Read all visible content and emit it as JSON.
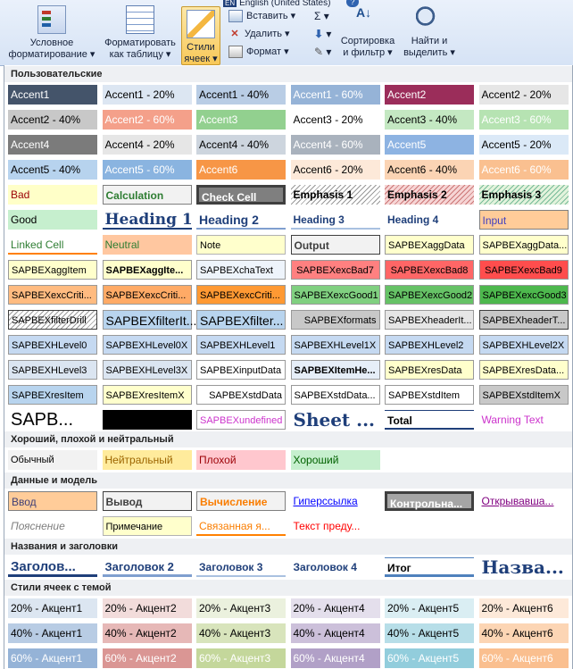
{
  "ribbon": {
    "language": "English (United States)",
    "help": "?",
    "conditional_format": {
      "line1": "Условное",
      "line2": "форматирование ▾"
    },
    "format_as_table": {
      "line1": "Форматировать",
      "line2": "как таблицу ▾"
    },
    "cell_styles": {
      "line1": "Стили",
      "line2": "ячеек ▾"
    },
    "insert": "Вставить ▾",
    "delete": "Удалить ▾",
    "format": "Формат ▾",
    "sum": "Σ ▾",
    "fill": "▾",
    "clear": "▾",
    "sort_filter": {
      "line1": "Сортировка",
      "line2": "и фильтр ▾"
    },
    "find_select": {
      "line1": "Найти и",
      "line2": "выделить ▾"
    }
  },
  "sections": [
    {
      "id": "custom",
      "label": "Пользовательские"
    },
    {
      "id": "gbn",
      "label": "Хороший, плохой и нейтральный"
    },
    {
      "id": "data",
      "label": "Данные и модель"
    },
    {
      "id": "titles",
      "label": "Названия и заголовки"
    },
    {
      "id": "themed",
      "label": "Стили ячеек с темой"
    }
  ],
  "rows": [
    {
      "sec": "custom",
      "cells": [
        {
          "t": "Accent1",
          "bg": "#44546a",
          "c": "#ffffff"
        },
        {
          "t": "Accent1 - 20%",
          "bg": "#dce6f2",
          "c": "#000000"
        },
        {
          "t": "Accent1 - 40%",
          "bg": "#b9cde5",
          "c": "#000000"
        },
        {
          "t": "Accent1 - 60%",
          "bg": "#95b3d7",
          "c": "#ffffff"
        },
        {
          "t": "Accent2",
          "bg": "#9b2d5a",
          "c": "#ffffff"
        },
        {
          "t": "Accent2 - 20%",
          "bg": "#e6e6e6",
          "c": "#000000"
        }
      ]
    },
    {
      "sec": "custom",
      "cells": [
        {
          "t": "Accent2 - 40%",
          "bg": "#c8c8c8",
          "c": "#000000"
        },
        {
          "t": "Accent2 - 60%",
          "bg": "#f4a08a",
          "c": "#ffffff"
        },
        {
          "t": "Accent3",
          "bg": "#92d08f",
          "c": "#ffffff"
        },
        {
          "t": "Accent3 - 20%",
          "bg": "#ffffff",
          "c": "#000000"
        },
        {
          "t": "Accent3 - 40%",
          "bg": "#c4e8c2",
          "c": "#000000"
        },
        {
          "t": "Accent3 - 60%",
          "bg": "#b6e3b2",
          "c": "#ffffff"
        }
      ]
    },
    {
      "sec": "custom",
      "cells": [
        {
          "t": "Accent4",
          "bg": "#7b7b7b",
          "c": "#ffffff"
        },
        {
          "t": "Accent4 - 20%",
          "bg": "#e6e6e6",
          "c": "#000000"
        },
        {
          "t": "Accent4 - 40%",
          "bg": "#cdd5de",
          "c": "#000000"
        },
        {
          "t": "Accent4 - 60%",
          "bg": "#a9b2bd",
          "c": "#ffffff"
        },
        {
          "t": "Accent5",
          "bg": "#8db3e2",
          "c": "#ffffff"
        },
        {
          "t": "Accent5 - 20%",
          "bg": "#dbe9f7",
          "c": "#000000"
        }
      ]
    },
    {
      "sec": "custom",
      "cells": [
        {
          "t": "Accent5 - 40%",
          "bg": "#b7d3ee",
          "c": "#000000"
        },
        {
          "t": "Accent5 - 60%",
          "bg": "#8ab4e0",
          "c": "#ffffff"
        },
        {
          "t": "Accent6",
          "bg": "#f79646",
          "c": "#ffffff"
        },
        {
          "t": "Accent6 - 20%",
          "bg": "#fde9d9",
          "c": "#000000"
        },
        {
          "t": "Accent6 - 40%",
          "bg": "#fbd4b4",
          "c": "#000000"
        },
        {
          "t": "Accent6 - 60%",
          "bg": "#fac090",
          "c": "#ffffff"
        }
      ]
    },
    {
      "sec": "custom",
      "cells": [
        {
          "t": "Bad",
          "bg": "#ffffc8",
          "c": "#9c0006"
        },
        {
          "t": "Calculation",
          "bg": "#f2f2f2",
          "c": "#2e7d32",
          "b": "#7f7f7f",
          "w": "bold"
        },
        {
          "t": "Check Cell",
          "bg": "#7f7f7f",
          "c": "#ffffff",
          "b": "#3f3f3f",
          "w": "bold",
          "bw": "3px"
        },
        {
          "t": "Emphasis 1",
          "bg": "hatch",
          "c": "#000000",
          "w": "bold"
        },
        {
          "t": "Emphasis 2",
          "bg": "hatch-red",
          "c": "#000000",
          "w": "bold"
        },
        {
          "t": "Emphasis 3",
          "bg": "hatch-green",
          "c": "#000000",
          "w": "bold"
        }
      ]
    },
    {
      "sec": "custom",
      "cells": [
        {
          "t": "Good",
          "bg": "#c6efce",
          "c": "#000000"
        },
        {
          "t": "Heading 1",
          "bg": "#ffffff",
          "c": "#1f3f7a",
          "w": "bold",
          "fs": "17px",
          "bb": "#1f3f7a",
          "serif": true
        },
        {
          "t": "Heading 2",
          "bg": "#ffffff",
          "c": "#1f3f7a",
          "w": "bold",
          "fs": "14px",
          "bb": "#7f9fcf"
        },
        {
          "t": "Heading 3",
          "bg": "#ffffff",
          "c": "#1f3f7a",
          "w": "bold",
          "fs": "12px",
          "bb": "#a9c1e0"
        },
        {
          "t": "Heading 4",
          "bg": "#ffffff",
          "c": "#1f3f7a",
          "w": "bold",
          "fs": "12px"
        },
        {
          "t": "Input",
          "bg": "#ffcc99",
          "c": "#3f3fbf",
          "b": "#7f7f7f"
        }
      ]
    },
    {
      "sec": "custom",
      "cells": [
        {
          "t": "Linked Cell",
          "bg": "#ffffff",
          "c": "#2e7d32",
          "bb": "#ff8001"
        },
        {
          "t": "Neutral",
          "bg": "#ffc7a0",
          "c": "#2e7d32"
        },
        {
          "t": "Note",
          "bg": "#ffffcc",
          "c": "#000000",
          "b": "#b2b2b2",
          "fs": "11px"
        },
        {
          "t": "Output",
          "bg": "#f2f2f2",
          "c": "#3f3f3f",
          "b": "#3f3f3f",
          "w": "bold"
        },
        {
          "t": "SAPBEXaggData",
          "bg": "#ffffcc",
          "c": "#000000",
          "b": "#999999",
          "fs": "11px"
        },
        {
          "t": "SAPBEXaggData...",
          "bg": "#ffffcc",
          "c": "#000000",
          "b": "#999999",
          "fs": "11px"
        }
      ]
    },
    {
      "sec": "custom",
      "cells": [
        {
          "t": "SAPBEXaggItem",
          "bg": "#ffffcc",
          "c": "#000000",
          "b": "#999999",
          "fs": "11px"
        },
        {
          "t": "SAPBEXaggIte...",
          "bg": "#ffffcc",
          "c": "#000000",
          "b": "#999999",
          "fs": "11px",
          "w": "bold"
        },
        {
          "t": "SAPBEXchaText",
          "bg": "#eef4fb",
          "c": "#000000",
          "b": "#999999",
          "fs": "11px"
        },
        {
          "t": "SAPBEXexcBad7",
          "bg": "#ff8080",
          "c": "#000000",
          "b": "#999999",
          "fs": "11px",
          "al": "center"
        },
        {
          "t": "SAPBEXexcBad8",
          "bg": "#ff6666",
          "c": "#000000",
          "b": "#999999",
          "fs": "11px",
          "al": "center"
        },
        {
          "t": "SAPBEXexcBad9",
          "bg": "#ff4d4d",
          "c": "#000000",
          "b": "#999999",
          "fs": "11px",
          "al": "center"
        }
      ]
    },
    {
      "sec": "custom",
      "cells": [
        {
          "t": "SAPBEXexcCriti...",
          "bg": "#ffbb80",
          "c": "#000000",
          "b": "#999999",
          "fs": "11px"
        },
        {
          "t": "SAPBEXexcCriti...",
          "bg": "#ffaa66",
          "c": "#000000",
          "b": "#999999",
          "fs": "11px"
        },
        {
          "t": "SAPBEXexcCriti...",
          "bg": "#ff9933",
          "c": "#000000",
          "b": "#999999",
          "fs": "11px"
        },
        {
          "t": "SAPBEXexcGood1",
          "bg": "#80d080",
          "c": "#000000",
          "b": "#999999",
          "fs": "11px"
        },
        {
          "t": "SAPBEXexcGood2",
          "bg": "#66c266",
          "c": "#000000",
          "b": "#999999",
          "fs": "11px"
        },
        {
          "t": "SAPBEXexcGood3",
          "bg": "#4db84d",
          "c": "#000000",
          "b": "#999999",
          "fs": "11px"
        }
      ]
    },
    {
      "sec": "custom",
      "cells": [
        {
          "t": "SAPBEXfilterDrill",
          "bg": "hatch",
          "c": "#000000",
          "b": "#3f3f3f",
          "fs": "11px"
        },
        {
          "t": "SAPBEXfilterIt...",
          "bg": "#b8d4ee",
          "c": "#000000",
          "b": "#999999",
          "fs": "14px"
        },
        {
          "t": "SAPBEXfilter...",
          "bg": "#b8d4ee",
          "c": "#000000",
          "b": "#999999",
          "fs": "14px"
        },
        {
          "t": "SAPBEXformats",
          "bg": "#c8c8c8",
          "c": "#000000",
          "b": "#999999",
          "fs": "11px",
          "al": "right"
        },
        {
          "t": "SAPBEXheaderIt...",
          "bg": "#e6e6e6",
          "c": "#000000",
          "b": "#999999",
          "fs": "11px"
        },
        {
          "t": "SAPBEXheaderT...",
          "bg": "#c8c8c8",
          "c": "#000000",
          "b": "#3f3f3f",
          "fs": "11px",
          "al": "right"
        }
      ]
    },
    {
      "sec": "custom",
      "cells": [
        {
          "t": "SAPBEXHLevel0",
          "bg": "#c5d9f1",
          "c": "#000000",
          "b": "#999999",
          "fs": "11px"
        },
        {
          "t": "SAPBEXHLevel0X",
          "bg": "#c5d9f1",
          "c": "#000000",
          "b": "#999999",
          "fs": "11px"
        },
        {
          "t": "SAPBEXHLevel1",
          "bg": "#c5d9f1",
          "c": "#000000",
          "b": "#999999",
          "fs": "11px"
        },
        {
          "t": "SAPBEXHLevel1X",
          "bg": "#c5d9f1",
          "c": "#000000",
          "b": "#999999",
          "fs": "11px"
        },
        {
          "t": "SAPBEXHLevel2",
          "bg": "#c5d9f1",
          "c": "#000000",
          "b": "#999999",
          "fs": "11px"
        },
        {
          "t": "SAPBEXHLevel2X",
          "bg": "#c5d9f1",
          "c": "#000000",
          "b": "#999999",
          "fs": "11px"
        }
      ]
    },
    {
      "sec": "custom",
      "cells": [
        {
          "t": "SAPBEXHLevel3",
          "bg": "#dbe5f1",
          "c": "#000000",
          "b": "#999999",
          "fs": "11px"
        },
        {
          "t": "SAPBEXHLevel3X",
          "bg": "#dbe5f1",
          "c": "#000000",
          "b": "#999999",
          "fs": "11px"
        },
        {
          "t": "SAPBEXinputData",
          "bg": "#ffffff",
          "c": "#000000",
          "b": "#999999",
          "fs": "11px"
        },
        {
          "t": "SAPBEXItemHe...",
          "bg": "#e6eef8",
          "c": "#000000",
          "b": "#999999",
          "fs": "11px",
          "w": "bold"
        },
        {
          "t": "SAPBEXresData",
          "bg": "#ffffcc",
          "c": "#000000",
          "b": "#999999",
          "fs": "11px"
        },
        {
          "t": "SAPBEXresData...",
          "bg": "#ffffcc",
          "c": "#000000",
          "b": "#999999",
          "fs": "11px"
        }
      ]
    },
    {
      "sec": "custom",
      "cells": [
        {
          "t": "SAPBEXresItem",
          "bg": "#b8d4ee",
          "c": "#000000",
          "b": "#999999",
          "fs": "11px"
        },
        {
          "t": "SAPBEXresItemX",
          "bg": "#ffffcc",
          "c": "#000000",
          "b": "#999999",
          "fs": "11px"
        },
        {
          "t": "SAPBEXstdData",
          "bg": "#ffffff",
          "c": "#000000",
          "b": "#999999",
          "fs": "11px",
          "al": "right"
        },
        {
          "t": "SAPBEXstdData...",
          "bg": "#ffffff",
          "c": "#000000",
          "b": "#999999",
          "fs": "11px"
        },
        {
          "t": "SAPBEXstdItem",
          "bg": "#ffffff",
          "c": "#000000",
          "b": "#999999",
          "fs": "11px"
        },
        {
          "t": "SAPBEXstdItemX",
          "bg": "#c8c8c8",
          "c": "#000000",
          "b": "#999999",
          "fs": "11px"
        }
      ]
    },
    {
      "sec": "custom",
      "cells": [
        {
          "t": "SAPB...",
          "bg": "#ffffff",
          "c": "#000000",
          "fs": "20px"
        },
        {
          "t": "",
          "bg": "#000000",
          "c": "#000000"
        },
        {
          "t": "SAPBEXundefined",
          "bg": "#ffffff",
          "c": "#cc33cc",
          "b": "#999999",
          "fs": "11px"
        },
        {
          "t": "Sheet ...",
          "bg": "#ffffff",
          "c": "#1f3f7a",
          "w": "bold",
          "fs": "20px",
          "serif": true
        },
        {
          "t": "Total",
          "bg": "#ffffff",
          "c": "#000000",
          "w": "bold",
          "bt": "#1f3f7a",
          "bb": "#1f3f7a"
        },
        {
          "t": "Warning Text",
          "bg": "#ffffff",
          "c": "#cc33cc"
        }
      ]
    },
    {
      "sec": "gbn",
      "cells": [
        {
          "t": "Обычный",
          "bg": "#f2f2f2",
          "c": "#000000",
          "fs": "11px"
        },
        {
          "t": "Нейтральный",
          "bg": "#ffeb9c",
          "c": "#9c6500"
        },
        {
          "t": "Плохой",
          "bg": "#ffc7ce",
          "c": "#9c0006"
        },
        {
          "t": "Хороший",
          "bg": "#c6efce",
          "c": "#006100"
        }
      ]
    },
    {
      "sec": "data",
      "cells": [
        {
          "t": "Ввод",
          "bg": "#ffcc99",
          "c": "#3f3f76",
          "b": "#7f7f7f"
        },
        {
          "t": "Вывод",
          "bg": "#f2f2f2",
          "c": "#3f3f3f",
          "b": "#3f3f3f",
          "w": "bold"
        },
        {
          "t": "Вычисление",
          "bg": "#f2f2f2",
          "c": "#fa7d00",
          "b": "#7f7f7f",
          "w": "bold"
        },
        {
          "t": "Гиперссылка",
          "bg": "#ffffff",
          "c": "#0000ff",
          "u": true
        },
        {
          "t": "Контрольна...",
          "bg": "#a5a5a5",
          "c": "#ffffff",
          "b": "#3f3f3f",
          "w": "bold",
          "bw": "3px"
        },
        {
          "t": "Открывавша...",
          "bg": "#ffffff",
          "c": "#800080",
          "u": true
        }
      ]
    },
    {
      "sec": "data",
      "cells": [
        {
          "t": "Пояснение",
          "bg": "#ffffff",
          "c": "#7f7f7f",
          "i": true
        },
        {
          "t": "Примечание",
          "bg": "#ffffcc",
          "c": "#000000",
          "b": "#b2b2b2",
          "fs": "11px"
        },
        {
          "t": "Связанная я...",
          "bg": "#ffffff",
          "c": "#fa7d00",
          "bb": "#ff8001"
        },
        {
          "t": "Текст преду...",
          "bg": "#ffffff",
          "c": "#ff0000"
        }
      ]
    },
    {
      "sec": "titles",
      "cells": [
        {
          "t": "Заголов...",
          "bg": "#ffffff",
          "c": "#1f3f7a",
          "w": "bold",
          "fs": "15px",
          "bb": "#1f3f7a",
          "bbw": "3px"
        },
        {
          "t": "Заголовок 2",
          "bg": "#ffffff",
          "c": "#1f3f7a",
          "w": "bold",
          "fs": "13px",
          "bb": "#7f9fcf",
          "bbw": "3px"
        },
        {
          "t": "Заголовок 3",
          "bg": "#ffffff",
          "c": "#1f3f7a",
          "w": "bold",
          "fs": "12px",
          "bb": "#a9c1e0",
          "bbw": "2px"
        },
        {
          "t": "Заголовок 4",
          "bg": "#ffffff",
          "c": "#1f3f7a",
          "w": "bold",
          "fs": "12px"
        },
        {
          "t": "Итог",
          "bg": "#ffffff",
          "c": "#000000",
          "w": "bold",
          "bt": "#4f81bd",
          "bb": "#4f81bd",
          "bbw": "3px"
        },
        {
          "t": "Назва...",
          "bg": "#ffffff",
          "c": "#1f3f7a",
          "w": "bold",
          "fs": "20px",
          "serif": true
        }
      ]
    },
    {
      "sec": "themed",
      "cells": [
        {
          "t": "20% - Акцент1",
          "bg": "#dce6f1",
          "c": "#000000"
        },
        {
          "t": "20% - Акцент2",
          "bg": "#f2dcdb",
          "c": "#000000"
        },
        {
          "t": "20% - Акцент3",
          "bg": "#ebf1de",
          "c": "#000000"
        },
        {
          "t": "20% - Акцент4",
          "bg": "#e4dfec",
          "c": "#000000"
        },
        {
          "t": "20% - Акцент5",
          "bg": "#daeef3",
          "c": "#000000"
        },
        {
          "t": "20% - Акцент6",
          "bg": "#fde9d9",
          "c": "#000000"
        }
      ]
    },
    {
      "sec": "themed",
      "cells": [
        {
          "t": "40% - Акцент1",
          "bg": "#b8cce4",
          "c": "#000000"
        },
        {
          "t": "40% - Акцент2",
          "bg": "#e6b8b7",
          "c": "#000000"
        },
        {
          "t": "40% - Акцент3",
          "bg": "#d8e4bc",
          "c": "#000000"
        },
        {
          "t": "40% - Акцент4",
          "bg": "#ccc0da",
          "c": "#000000"
        },
        {
          "t": "40% - Акцент5",
          "bg": "#b7dee8",
          "c": "#000000"
        },
        {
          "t": "40% - Акцент6",
          "bg": "#fcd5b4",
          "c": "#000000"
        }
      ]
    },
    {
      "sec": "themed",
      "cells": [
        {
          "t": "60% - Акцент1",
          "bg": "#95b3d7",
          "c": "#ffffff"
        },
        {
          "t": "60% - Акцент2",
          "bg": "#da9694",
          "c": "#ffffff"
        },
        {
          "t": "60% - Акцент3",
          "bg": "#c4d79b",
          "c": "#ffffff"
        },
        {
          "t": "60% - Акцент4",
          "bg": "#b1a0c7",
          "c": "#ffffff"
        },
        {
          "t": "60% - Акцент5",
          "bg": "#92cddc",
          "c": "#ffffff"
        },
        {
          "t": "60% - Акцент6",
          "bg": "#fabf8f",
          "c": "#ffffff"
        }
      ]
    }
  ]
}
